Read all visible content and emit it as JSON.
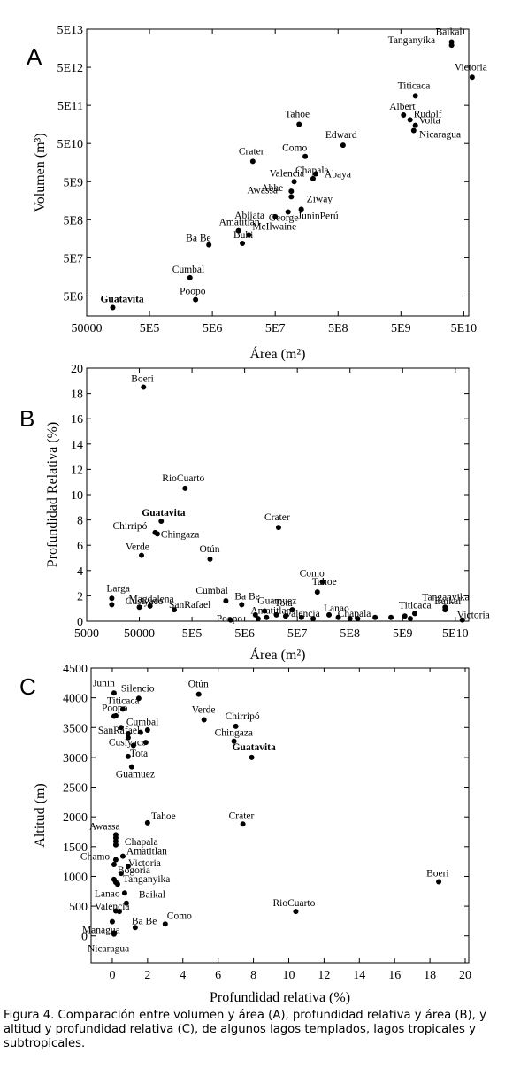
{
  "caption": "Figura 4. Comparación entre volumen y área (A),  profundidad relativa y área (B), y altitud y profundidad relativa (C), de algunos lagos templados, lagos tropicales y subtropicales.",
  "chart_data": [
    {
      "type": "scatter",
      "panel": "A",
      "xlabel": "Área (m²)",
      "ylabel": "Volumen (m³)",
      "xscale": "log",
      "yscale": "log",
      "xlim": [
        50000,
        60000000000
      ],
      "ylim": [
        1500000,
        50000000000000
      ],
      "xticks": [
        50000,
        500000,
        5000000,
        50000000,
        500000000,
        5000000000,
        50000000000
      ],
      "xtick_labels": [
        "50000",
        "5E5",
        "5E6",
        "5E7",
        "5E8",
        "5E9",
        "5E10"
      ],
      "yticks": [
        5000000,
        50000000,
        500000000,
        5000000000,
        50000000000,
        500000000000,
        5000000000000,
        50000000000000
      ],
      "ytick_labels": [
        "5E6",
        "5E7",
        "5E8",
        "5E9",
        "5E10",
        "5E11",
        "5E12",
        "5E13"
      ],
      "points": [
        {
          "label": "Guatavita",
          "x": 130000.0,
          "y": 2500000.0,
          "bold": true
        },
        {
          "label": "Poopo",
          "x": 2700000.0,
          "y": 4000000.0
        },
        {
          "label": "Cumbal",
          "x": 2200000.0,
          "y": 15000000.0
        },
        {
          "label": "Ba Be",
          "x": 4400000.0,
          "y": 110000000.0
        },
        {
          "label": "Buhi",
          "x": 15000000.0,
          "y": 120000000.0
        },
        {
          "label": "McIlwaine",
          "x": 19000000.0,
          "y": 200000000.0
        },
        {
          "label": "Amatitlan",
          "x": 13000000.0,
          "y": 260000000.0
        },
        {
          "label": "Abijata",
          "x": 50000000.0,
          "y": 600000000.0
        },
        {
          "label": "George",
          "x": 80000000.0,
          "y": 800000000.0
        },
        {
          "label": "JuninPerú",
          "x": 130000000.0,
          "y": 900000000.0
        },
        {
          "label": "Ziway",
          "x": 130000000.0,
          "y": 950000000.0
        },
        {
          "label": "Awassa",
          "x": 90000000.0,
          "y": 2000000000.0
        },
        {
          "label": "Abhe",
          "x": 90000000.0,
          "y": 2800000000.0
        },
        {
          "label": "Valencia",
          "x": 100000000.0,
          "y": 5000000000.0
        },
        {
          "label": "Chapala",
          "x": 200000000.0,
          "y": 6000000000.0
        },
        {
          "label": "Abaya",
          "x": 220000000.0,
          "y": 8000000000.0
        },
        {
          "label": "Crater",
          "x": 22000000.0,
          "y": 17000000000.0
        },
        {
          "label": "Como",
          "x": 150000000.0,
          "y": 23000000000.0
        },
        {
          "label": "Edward",
          "x": 600000000.0,
          "y": 45000000000.0
        },
        {
          "label": "Tahoe",
          "x": 120000000.0,
          "y": 160000000000.0
        },
        {
          "label": "Albert",
          "x": 5500000000.0,
          "y": 280000000000.0
        },
        {
          "label": "Rudolf",
          "x": 7000000000.0,
          "y": 210000000000.0
        },
        {
          "label": "Volta",
          "x": 8500000000.0,
          "y": 150000000000.0
        },
        {
          "label": "Nicaragua",
          "x": 8000000000.0,
          "y": 110000000000.0
        },
        {
          "label": "Titicaca",
          "x": 8500000000.0,
          "y": 890000000000.0
        },
        {
          "label": "Victoria",
          "x": 68000000000.0,
          "y": 2750000000000.0
        },
        {
          "label": "Tanganyika",
          "x": 32000000000.0,
          "y": 19000000000000.0
        },
        {
          "label": "Baikal",
          "x": 32000000000.0,
          "y": 23000000000000.0
        }
      ]
    },
    {
      "type": "scatter",
      "panel": "B",
      "xlabel": "Área (m²)",
      "ylabel": "Profundidad Relativa (%)",
      "xscale": "log",
      "xlim": [
        5000,
        90000000000
      ],
      "ylim": [
        0,
        20
      ],
      "xticks": [
        5000,
        50000,
        500000,
        5000000,
        50000000,
        500000000,
        5000000000,
        50000000000
      ],
      "xtick_labels": [
        "5000",
        "50000",
        "5E5",
        "5E6",
        "5E7",
        "5E8",
        "5E9",
        "5E10"
      ],
      "yticks": [
        0,
        2,
        4,
        6,
        8,
        10,
        12,
        14,
        16,
        18,
        20
      ],
      "points": [
        {
          "label": "Boeri",
          "x": 60000,
          "y": 18.5
        },
        {
          "label": "RioCuarto",
          "x": 370000,
          "y": 10.5
        },
        {
          "label": "Guatavita",
          "x": 130000,
          "y": 7.9,
          "bold": true
        },
        {
          "label": "Chirripó",
          "x": 100000,
          "y": 7.0
        },
        {
          "label": "Chingaza",
          "x": 110000,
          "y": 6.9
        },
        {
          "label": "Verde",
          "x": 55000,
          "y": 5.2
        },
        {
          "label": "Otún",
          "x": 1100000,
          "y": 4.9
        },
        {
          "label": "Crater",
          "x": 22000000,
          "y": 7.4
        },
        {
          "label": "Larga",
          "x": 15000,
          "y": 1.8
        },
        {
          "label": "Magdalena",
          "x": 50000,
          "y": 1.1
        },
        {
          "label": "Cusiyaco",
          "x": 80000,
          "y": 1.2
        },
        {
          "label": "SanRafael",
          "x": 230000,
          "y": 0.9
        },
        {
          "label": "Cumbal",
          "x": 2200000,
          "y": 1.6
        },
        {
          "label": "Ba Be",
          "x": 4400000,
          "y": 1.3
        },
        {
          "label": "Poopo",
          "x": 2700000,
          "y": 0.1
        },
        {
          "label": "Guamuez",
          "x": 12000000,
          "y": 0.8
        },
        {
          "label": "Amatitlan",
          "x": 13000000,
          "y": 0.3
        },
        {
          "label": "Tota",
          "x": 40000000,
          "y": 0.9
        },
        {
          "label": "Como",
          "x": 150000000,
          "y": 3.1
        },
        {
          "label": "Tahoe",
          "x": 120000000,
          "y": 2.3
        },
        {
          "label": "Lanao",
          "x": 200000000,
          "y": 0.5
        },
        {
          "label": "Valencia",
          "x": 100000000,
          "y": 0.2
        },
        {
          "label": "Chapala",
          "x": 500000000,
          "y": 0.2
        },
        {
          "label": "Titicaca",
          "x": 8500000000,
          "y": 0.6
        },
        {
          "label": "Tanganyika",
          "x": 32000000000,
          "y": 1.1
        },
        {
          "label": "Baikal",
          "x": 32000000000,
          "y": 0.9
        },
        {
          "label": "Victoria",
          "x": 68000000000,
          "y": 0.1
        },
        {
          "label": "",
          "x": 15000,
          "y": 1.3
        },
        {
          "label": "",
          "x": 20000000,
          "y": 0.5
        },
        {
          "label": "",
          "x": 30000000,
          "y": 0.4
        },
        {
          "label": "",
          "x": 8000000,
          "y": 0.5
        },
        {
          "label": "",
          "x": 9000000,
          "y": 0.2
        },
        {
          "label": "",
          "x": 60000000,
          "y": 0.3
        },
        {
          "label": "",
          "x": 300000000,
          "y": 0.3
        },
        {
          "label": "",
          "x": 700000000,
          "y": 0.2
        },
        {
          "label": "",
          "x": 1500000000,
          "y": 0.3
        },
        {
          "label": "",
          "x": 3000000000,
          "y": 0.3
        },
        {
          "label": "",
          "x": 5500000000,
          "y": 0.4
        },
        {
          "label": "",
          "x": 7000000000,
          "y": 0.2
        }
      ]
    },
    {
      "type": "scatter",
      "panel": "C",
      "xlabel": "Profundidad relativa (%)",
      "ylabel": "Altitud (m)",
      "xlim": [
        -1.2,
        20.2
      ],
      "ylim": [
        -450,
        4500
      ],
      "xticks": [
        0,
        2,
        4,
        6,
        8,
        10,
        12,
        14,
        16,
        18,
        20
      ],
      "yticks": [
        0,
        500,
        1000,
        1500,
        2000,
        2500,
        3000,
        3500,
        4000,
        4500
      ],
      "points": [
        {
          "label": "Junin",
          "x": 0.1,
          "y": 4080
        },
        {
          "label": "Silencio",
          "x": 1.5,
          "y": 3990
        },
        {
          "label": "Otún",
          "x": 4.9,
          "y": 4060
        },
        {
          "label": "Titicaca",
          "x": 0.6,
          "y": 3810
        },
        {
          "label": "Poopo",
          "x": 0.1,
          "y": 3690
        },
        {
          "label": "Cumbal",
          "x": 1.6,
          "y": 3420
        },
        {
          "label": "Verde",
          "x": 5.2,
          "y": 3630
        },
        {
          "label": "Chirripó",
          "x": 7.0,
          "y": 3520
        },
        {
          "label": "Chingaza",
          "x": 6.9,
          "y": 3270
        },
        {
          "label": "Guatavita",
          "x": 7.9,
          "y": 3000,
          "bold": true
        },
        {
          "label": "SanRafael",
          "x": 0.9,
          "y": 3400
        },
        {
          "label": "Cusiyaco",
          "x": 1.2,
          "y": 3200
        },
        {
          "label": "Tota",
          "x": 0.9,
          "y": 3015
        },
        {
          "label": "Guamuez",
          "x": 1.1,
          "y": 2840
        },
        {
          "label": "Awassa",
          "x": 0.2,
          "y": 1700
        },
        {
          "label": "Tahoe",
          "x": 2.0,
          "y": 1900
        },
        {
          "label": "Crater",
          "x": 7.4,
          "y": 1880
        },
        {
          "label": "Chapala",
          "x": 0.2,
          "y": 1530
        },
        {
          "label": "Chamo",
          "x": 0.2,
          "y": 1280
        },
        {
          "label": "Amatitlan",
          "x": 0.6,
          "y": 1340
        },
        {
          "label": "Victoria",
          "x": 0.9,
          "y": 1170
        },
        {
          "label": "Bogoria",
          "x": 0.5,
          "y": 1050
        },
        {
          "label": "Boeri",
          "x": 18.5,
          "y": 910
        },
        {
          "label": "Tanganyika",
          "x": 0.2,
          "y": 900
        },
        {
          "label": "Lanao",
          "x": 0.7,
          "y": 720
        },
        {
          "label": "Baikal",
          "x": 0.8,
          "y": 550
        },
        {
          "label": "Valencia",
          "x": 0.4,
          "y": 410
        },
        {
          "label": "RioCuarto",
          "x": 10.4,
          "y": 410
        },
        {
          "label": "Como",
          "x": 3.0,
          "y": 200
        },
        {
          "label": "Ba Be",
          "x": 1.3,
          "y": 140
        },
        {
          "label": "Managua",
          "x": 0.1,
          "y": 50
        },
        {
          "label": "Nicaragua",
          "x": 0.1,
          "y": 30
        },
        {
          "label": "",
          "x": 0.2,
          "y": 3700
        },
        {
          "label": "",
          "x": 0.5,
          "y": 3500
        },
        {
          "label": "",
          "x": 0.9,
          "y": 3330
        },
        {
          "label": "",
          "x": 1.9,
          "y": 3250
        },
        {
          "label": "",
          "x": 2.0,
          "y": 3460
        },
        {
          "label": "",
          "x": 0.2,
          "y": 1590
        },
        {
          "label": "",
          "x": 0.2,
          "y": 1650
        },
        {
          "label": "",
          "x": 0.1,
          "y": 1200
        },
        {
          "label": "",
          "x": 0.1,
          "y": 950
        },
        {
          "label": "",
          "x": 0.3,
          "y": 870
        },
        {
          "label": "",
          "x": 0.2,
          "y": 420
        },
        {
          "label": "",
          "x": 0.0,
          "y": 240
        }
      ]
    }
  ]
}
